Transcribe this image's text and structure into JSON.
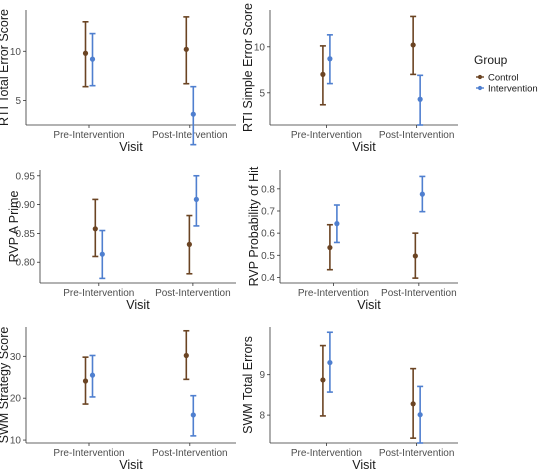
{
  "colors": {
    "Control": "#6b4423",
    "Intervention": "#4f7fcf"
  },
  "legend": {
    "title": "Group",
    "placement": "right",
    "entries": [
      "Control",
      "Intervention"
    ]
  },
  "chart_data": [
    {
      "type": "scatter",
      "error_bars": true,
      "xlabel": "Visit",
      "ylabel": "RTI Total Error Score",
      "categories": [
        "Pre-Intervention",
        "Post-Intervention"
      ],
      "ylim": [
        2.5,
        14.2
      ],
      "yticks": [
        5,
        10
      ],
      "grid": false,
      "series": [
        {
          "name": "Control",
          "values": [
            9.8,
            10.2
          ],
          "lower": [
            6.4,
            6.7
          ],
          "upper": [
            13.0,
            13.5
          ]
        },
        {
          "name": "Intervention",
          "values": [
            9.2,
            3.6
          ],
          "lower": [
            6.5,
            0.5
          ],
          "upper": [
            11.8,
            6.4
          ]
        }
      ]
    },
    {
      "type": "scatter",
      "error_bars": true,
      "xlabel": "Visit",
      "ylabel": "RTI Simple Error Score",
      "categories": [
        "Pre-Intervention",
        "Post-Intervention"
      ],
      "ylim": [
        1.5,
        14.0
      ],
      "yticks": [
        5,
        10
      ],
      "grid": false,
      "series": [
        {
          "name": "Control",
          "values": [
            7.0,
            10.2
          ],
          "lower": [
            3.7,
            7.0
          ],
          "upper": [
            10.1,
            13.3
          ]
        },
        {
          "name": "Intervention",
          "values": [
            8.7,
            4.3
          ],
          "lower": [
            6.0,
            1.5
          ],
          "upper": [
            11.3,
            6.9
          ]
        }
      ]
    },
    {
      "type": "scatter",
      "error_bars": true,
      "xlabel": "Visit",
      "ylabel": "RVP A Prime",
      "categories": [
        "Pre-Intervention",
        "Post-Intervention"
      ],
      "ylim": [
        0.764,
        0.96
      ],
      "yticks": [
        0.8,
        0.85,
        0.9,
        0.95
      ],
      "grid": false,
      "series": [
        {
          "name": "Control",
          "values": [
            0.858,
            0.831
          ],
          "lower": [
            0.81,
            0.78
          ],
          "upper": [
            0.909,
            0.881
          ]
        },
        {
          "name": "Intervention",
          "values": [
            0.814,
            0.909
          ],
          "lower": [
            0.772,
            0.863
          ],
          "upper": [
            0.855,
            0.95
          ]
        }
      ]
    },
    {
      "type": "scatter",
      "error_bars": true,
      "xlabel": "Visit",
      "ylabel": "RVP Probability of Hit",
      "categories": [
        "Pre-Intervention",
        "Post-Intervention"
      ],
      "ylim": [
        0.375,
        0.885
      ],
      "yticks": [
        0.4,
        0.5,
        0.6,
        0.7,
        0.8
      ],
      "grid": false,
      "series": [
        {
          "name": "Control",
          "values": [
            0.535,
            0.497
          ],
          "lower": [
            0.435,
            0.397
          ],
          "upper": [
            0.638,
            0.6
          ]
        },
        {
          "name": "Intervention",
          "values": [
            0.643,
            0.776
          ],
          "lower": [
            0.558,
            0.697
          ],
          "upper": [
            0.727,
            0.856
          ]
        }
      ]
    },
    {
      "type": "scatter",
      "error_bars": true,
      "xlabel": "Visit",
      "ylabel": "SWM Strategy Score",
      "categories": [
        "Pre-Intervention",
        "Post-Intervention"
      ],
      "ylim": [
        9.3,
        37.0
      ],
      "yticks": [
        10,
        20,
        30
      ],
      "grid": false,
      "series": [
        {
          "name": "Control",
          "values": [
            24.1,
            30.2
          ],
          "lower": [
            18.6,
            24.5
          ],
          "upper": [
            29.8,
            36.1
          ]
        },
        {
          "name": "Intervention",
          "values": [
            25.5,
            16.0
          ],
          "lower": [
            20.3,
            11.0
          ],
          "upper": [
            30.2,
            20.6
          ]
        }
      ]
    },
    {
      "type": "scatter",
      "error_bars": true,
      "xlabel": "Visit",
      "ylabel": "SWM Total Errors",
      "categories": [
        "Pre-Intervention",
        "Post-Intervention"
      ],
      "ylim": [
        7.31,
        10.18
      ],
      "yticks": [
        8,
        9
      ],
      "grid": false,
      "series": [
        {
          "name": "Control",
          "values": [
            8.87,
            8.28
          ],
          "lower": [
            7.98,
            7.43
          ],
          "upper": [
            9.72,
            9.15
          ]
        },
        {
          "name": "Intervention",
          "values": [
            9.3,
            8.01
          ],
          "lower": [
            8.57,
            7.31
          ],
          "upper": [
            10.05,
            8.71
          ]
        }
      ]
    }
  ]
}
